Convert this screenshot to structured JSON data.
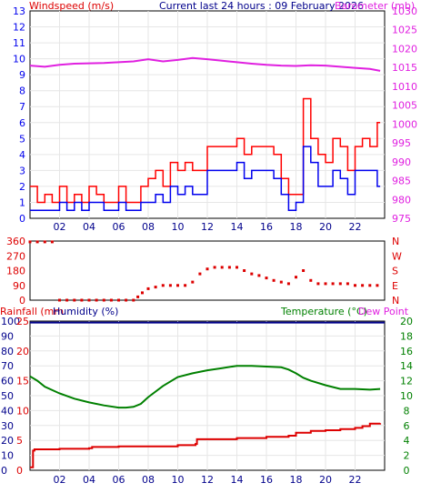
{
  "chart_data": [
    {
      "type": "line",
      "title_left": "Windspeed (m/s)",
      "title_center": "Current last 24 hours : 09 February 2026",
      "title_right": "Barometer (mb)",
      "x_labels": [
        "02",
        "04",
        "06",
        "08",
        "10",
        "12",
        "14",
        "16",
        "18",
        "20",
        "22"
      ],
      "x_range_hours": [
        0,
        24
      ],
      "ylim_left": [
        0,
        13
      ],
      "ylim_right": [
        975,
        1030
      ],
      "y_ticks_left": [
        "0",
        "1",
        "2",
        "3",
        "4",
        "5",
        "6",
        "7",
        "8",
        "9",
        "10",
        "11",
        "12",
        "13"
      ],
      "y_ticks_right": [
        "975",
        "980",
        "985",
        "990",
        "995",
        "1000",
        "1005",
        "1010",
        "1015",
        "1020",
        "1025",
        "1030"
      ],
      "series": [
        {
          "name": "Barometer",
          "axis": "right",
          "color": "#e020e0",
          "x": [
            0,
            1,
            2,
            3,
            4,
            5,
            6,
            7,
            8,
            9,
            10,
            11,
            12,
            13,
            14,
            15,
            16,
            17,
            18,
            19,
            20,
            21,
            22,
            23,
            23.7
          ],
          "y": [
            1015.5,
            1015.2,
            1015.7,
            1016.0,
            1016.1,
            1016.2,
            1016.4,
            1016.6,
            1017.2,
            1016.6,
            1017.0,
            1017.5,
            1017.2,
            1016.8,
            1016.4,
            1016.0,
            1015.7,
            1015.5,
            1015.4,
            1015.6,
            1015.5,
            1015.2,
            1014.9,
            1014.6,
            1014.1
          ]
        },
        {
          "name": "Wind gust",
          "axis": "left",
          "color": "#ff0000",
          "x": [
            0,
            0.5,
            1,
            1.5,
            2,
            2.5,
            3,
            3.5,
            4,
            4.5,
            5,
            5.5,
            6,
            6.5,
            7,
            7.5,
            8,
            8.5,
            9,
            9.5,
            10,
            10.5,
            11,
            11.5,
            12,
            12.5,
            13,
            13.5,
            14,
            14.5,
            15,
            15.5,
            16,
            16.5,
            17,
            17.5,
            18,
            18.5,
            19,
            19.5,
            20,
            20.5,
            21,
            21.5,
            22,
            22.5,
            23,
            23.5
          ],
          "y": [
            2,
            1,
            1.5,
            1,
            2,
            1,
            1.5,
            1,
            2,
            1.5,
            1,
            1,
            2,
            1,
            1,
            2,
            2.5,
            3,
            2,
            3.5,
            3,
            3.5,
            3,
            3,
            4.5,
            4.5,
            4.5,
            4.5,
            5,
            4,
            4.5,
            4.5,
            4.5,
            4,
            2.5,
            1.5,
            1.5,
            7.5,
            5,
            4,
            3.5,
            5,
            4.5,
            3,
            4.5,
            5,
            4.5,
            6
          ]
        },
        {
          "name": "Wind speed",
          "axis": "left",
          "color": "#0000ee",
          "x": [
            0,
            0.5,
            1,
            1.5,
            2,
            2.5,
            3,
            3.5,
            4,
            4.5,
            5,
            5.5,
            6,
            6.5,
            7,
            7.5,
            8,
            8.5,
            9,
            9.5,
            10,
            10.5,
            11,
            11.5,
            12,
            12.5,
            13,
            13.5,
            14,
            14.5,
            15,
            15.5,
            16,
            16.5,
            17,
            17.5,
            18,
            18.5,
            19,
            19.5,
            20,
            20.5,
            21,
            21.5,
            22,
            22.5,
            23,
            23.5
          ],
          "y": [
            0.5,
            0.5,
            0.5,
            0.5,
            1,
            0.5,
            1,
            0.5,
            1,
            1,
            0.5,
            0.5,
            1,
            0.5,
            0.5,
            1,
            1,
            1.5,
            1,
            2,
            1.5,
            2,
            1.5,
            1.5,
            3,
            3,
            3,
            3,
            3.5,
            2.5,
            3,
            3,
            3,
            2.5,
            1.5,
            0.5,
            1,
            4.5,
            3.5,
            2,
            2,
            3,
            2.5,
            1.5,
            3,
            3,
            3,
            2
          ]
        }
      ]
    },
    {
      "type": "scatter",
      "name": "Wind direction",
      "x_range_hours": [
        0,
        24
      ],
      "ylim_left": [
        0,
        360
      ],
      "y_ticks_left": [
        "0",
        "90",
        "180",
        "270",
        "360"
      ],
      "y_ticks_right": [
        "N",
        "E",
        "S",
        "W",
        "N"
      ],
      "color": "#dd0000",
      "x": [
        0,
        0.5,
        1,
        1.5,
        2,
        2.5,
        3,
        3.5,
        4,
        4.5,
        5,
        5.5,
        6,
        6.5,
        7,
        7.3,
        7.6,
        8,
        8.5,
        9,
        9.5,
        10,
        10.5,
        11,
        11.5,
        12,
        12.5,
        13,
        13.5,
        14,
        14.5,
        15,
        15.5,
        16,
        16.5,
        17,
        17.5,
        18,
        18.5,
        19,
        19.5,
        20,
        20.5,
        21,
        21.5,
        22,
        22.5,
        23,
        23.5
      ],
      "y": [
        355,
        355,
        355,
        355,
        0,
        0,
        0,
        0,
        0,
        0,
        0,
        0,
        0,
        0,
        0,
        20,
        45,
        70,
        80,
        90,
        90,
        90,
        90,
        110,
        160,
        190,
        200,
        200,
        200,
        200,
        180,
        160,
        150,
        135,
        120,
        110,
        100,
        140,
        180,
        120,
        100,
        100,
        100,
        100,
        100,
        90,
        90,
        90,
        90
      ]
    },
    {
      "type": "line",
      "title_left": "Rainfall (mm",
      "title_left2": "Humidity (%)",
      "title_right": "Temperature (°C)",
      "title_right2": "Dew Point",
      "x_labels": [
        "02",
        "04",
        "06",
        "08",
        "10",
        "12",
        "14",
        "16",
        "18",
        "20",
        "22"
      ],
      "x_range_hours": [
        0,
        24
      ],
      "ylim_rain": [
        0,
        25
      ],
      "ylim_humidity": [
        0,
        100
      ],
      "ylim_temperature": [
        0,
        20
      ],
      "y_ticks_humidity": [
        "0",
        "10",
        "20",
        "30",
        "40",
        "50",
        "60",
        "70",
        "80",
        "90",
        "100"
      ],
      "y_ticks_rain": [
        "0",
        "5",
        "10",
        "15",
        "20",
        "25"
      ],
      "y_ticks_temperature": [
        "0",
        "2",
        "4",
        "6",
        "8",
        "10",
        "12",
        "14",
        "16",
        "18",
        "20"
      ],
      "series": [
        {
          "name": "Humidity",
          "axis": "humidity",
          "color": "#00008b",
          "x": [
            0,
            24
          ],
          "y": [
            99,
            99
          ]
        },
        {
          "name": "Temperature",
          "axis": "temperature",
          "color": "#008000",
          "x": [
            0,
            0.5,
            1,
            2,
            3,
            4,
            5,
            6,
            6.5,
            7,
            7.5,
            8,
            9,
            10,
            11,
            12,
            13,
            14,
            15,
            16,
            17,
            17.5,
            18,
            18.5,
            19,
            20,
            21,
            22,
            23,
            23.7
          ],
          "y": [
            12.6,
            12,
            11.2,
            10.3,
            9.6,
            9.1,
            8.7,
            8.4,
            8.4,
            8.5,
            8.9,
            9.8,
            11.3,
            12.5,
            13,
            13.4,
            13.7,
            14,
            14,
            13.9,
            13.8,
            13.5,
            13,
            12.4,
            12,
            11.4,
            10.9,
            10.9,
            10.8,
            10.9
          ]
        },
        {
          "name": "Rainfall",
          "axis": "rain",
          "color": "#dd0000",
          "x": [
            0,
            0.2,
            0.3,
            2,
            4,
            4.2,
            6,
            10,
            11.2,
            11.3,
            14,
            16,
            17.5,
            18,
            19,
            20,
            21,
            22,
            22.5,
            23,
            23.7
          ],
          "y": [
            0.5,
            3.3,
            3.5,
            3.6,
            3.7,
            3.9,
            4,
            4.2,
            4.4,
            5.2,
            5.4,
            5.6,
            5.8,
            6.3,
            6.6,
            6.7,
            6.9,
            7.1,
            7.4,
            7.8,
            7.9
          ]
        }
      ]
    }
  ]
}
